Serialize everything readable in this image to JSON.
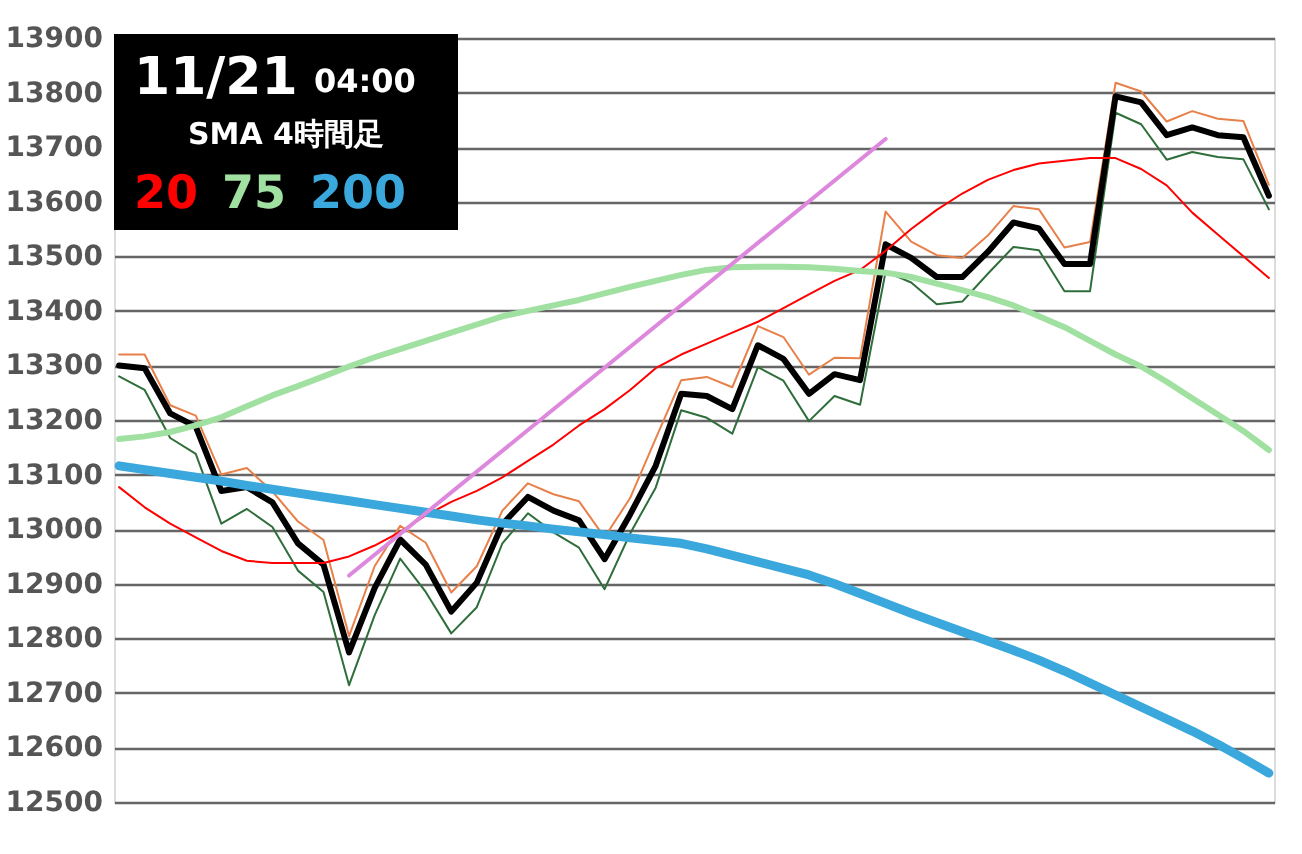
{
  "chart_data": {
    "type": "line",
    "title": "11/21 04:00",
    "subtitle": "SMA 4時間足",
    "categories": [
      null,
      null,
      null,
      null,
      null,
      null,
      null,
      null,
      null,
      null,
      null,
      null,
      null,
      null,
      null,
      null,
      null,
      null,
      null,
      null,
      null,
      null,
      null,
      null,
      null,
      null,
      null,
      null,
      null,
      null,
      null,
      null,
      null,
      null,
      null,
      null,
      null,
      null,
      null,
      null,
      null,
      null,
      null,
      null,
      null,
      null
    ],
    "series": [
      {
        "color": "#e8804a",
        "values": [
          13320,
          13320,
          13227,
          13208,
          13100,
          13112,
          13069,
          13014,
          12980,
          12804,
          12932,
          13006,
          12975,
          12884,
          12932,
          13034,
          13084,
          13064,
          13051,
          12985,
          13057,
          13166,
          13273,
          13279,
          13260,
          13372,
          13352,
          13283,
          13314,
          13313,
          13582,
          13527,
          13502,
          13497,
          13538,
          13592,
          13586,
          13516,
          13526,
          13818,
          13802,
          13747,
          13766,
          13752,
          13748,
          13631
        ]
      },
      {
        "color": "#2e6e3a",
        "values": [
          13280,
          13255,
          13167,
          13138,
          13010,
          13037,
          13004,
          12924,
          12885,
          12714,
          12842,
          12946,
          12885,
          12809,
          12857,
          12974,
          13029,
          12994,
          12966,
          12890,
          12992,
          13076,
          13218,
          13204,
          13175,
          13297,
          13272,
          13198,
          13244,
          13228,
          13472,
          13452,
          13412,
          13417,
          13468,
          13517,
          13511,
          13436,
          13436,
          13763,
          13742,
          13677,
          13691,
          13682,
          13678,
          13586
        ]
      },
      {
        "color": "#000000",
        "values": [
          13300,
          13295,
          13212,
          13188,
          13070,
          13077,
          13049,
          12974,
          12935,
          12774,
          12892,
          12981,
          12935,
          12849,
          12902,
          13009,
          13059,
          13034,
          13016,
          12945,
          13027,
          13116,
          13248,
          13244,
          13220,
          13337,
          13312,
          13248,
          13284,
          13273,
          13522,
          13497,
          13462,
          13462,
          13508,
          13562,
          13551,
          13486,
          13486,
          13793,
          13782,
          13722,
          13736,
          13722,
          13718,
          13611
        ]
      },
      {
        "name": "20",
        "color": "#ff0000",
        "values": [
          13077,
          13040,
          13010,
          12985,
          12960,
          12942,
          12938,
          12938,
          12938,
          12950,
          12970,
          12995,
          13025,
          13050,
          13070,
          13095,
          13125,
          13155,
          13190,
          13220,
          13255,
          13295,
          13320,
          13340,
          13360,
          13380,
          13405,
          13430,
          13455,
          13475,
          13510,
          13550,
          13585,
          13615,
          13640,
          13658,
          13670,
          13675,
          13680,
          13680,
          13660,
          13630,
          13580,
          13540,
          13500,
          13460
        ]
      },
      {
        "name": "75",
        "color": "#a0e0a0",
        "values": [
          13165,
          13170,
          13178,
          13190,
          13205,
          13225,
          13245,
          13262,
          13280,
          13298,
          13315,
          13330,
          13345,
          13360,
          13375,
          13390,
          13400,
          13410,
          13420,
          13432,
          13444,
          13455,
          13466,
          13475,
          13480,
          13481,
          13481,
          13480,
          13477,
          13473,
          13470,
          13462,
          13450,
          13438,
          13425,
          13410,
          13390,
          13370,
          13345,
          13320,
          13298,
          13270,
          13240,
          13210,
          13180,
          13145
        ]
      },
      {
        "name": "200",
        "color": "#3aa8dc",
        "values": [
          13116,
          13109,
          13102,
          13095,
          13088,
          13080,
          13073,
          13066,
          13059,
          13052,
          13045,
          13038,
          13031,
          13024,
          13017,
          13011,
          13006,
          13000,
          12995,
          12990,
          12984,
          12979,
          12974,
          12964,
          12952,
          12940,
          12928,
          12916,
          12900,
          12882,
          12864,
          12846,
          12829,
          12812,
          12795,
          12778,
          12760,
          12740,
          12718,
          12696,
          12674,
          12652,
          12630,
          12606,
          12580,
          12553
        ]
      },
      {
        "color": "#dd88dd",
        "values": [
          null,
          null,
          null,
          null,
          null,
          null,
          null,
          null,
          null,
          12915,
          null,
          null,
          null,
          null,
          null,
          null,
          null,
          null,
          null,
          null,
          null,
          null,
          null,
          null,
          null,
          null,
          null,
          null,
          null,
          null,
          13715,
          null,
          null,
          null,
          null,
          null,
          null,
          null,
          null,
          null,
          null,
          null,
          null,
          null,
          null,
          null
        ]
      }
    ],
    "ylim": [
      12500,
      13900
    ],
    "yticks": [
      12500,
      12600,
      12700,
      12800,
      12900,
      13000,
      13100,
      13200,
      13300,
      13400,
      13500,
      13600,
      13700,
      13800,
      13900
    ],
    "grid": "y",
    "legend": "top left",
    "tick_labels": "y",
    "marker": "none",
    "line_style": "solid"
  }
}
